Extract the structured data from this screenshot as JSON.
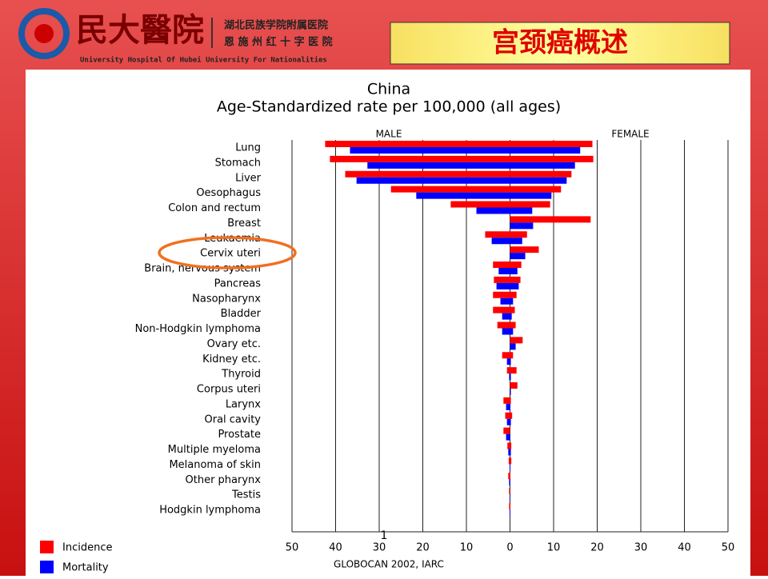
{
  "header": {
    "logo_text": "民大醫院",
    "hospital_lines": [
      "湖北民族学院附属医院",
      "恩 施 州 红 十 字 医 院"
    ],
    "hospital_en": "University Hospital Of Hubei University For Nationalities",
    "slide_title": "宫颈癌概述",
    "page_number": "1"
  },
  "chart_data": {
    "type": "butterfly-bar",
    "title": "China",
    "subtitle": "Age-Standardized rate per 100,000 (all ages)",
    "side_labels": [
      "MALE",
      "FEMALE"
    ],
    "source": "GLOBOCAN 2002, IARC",
    "categories": [
      "Lung",
      "Stomach",
      "Liver",
      "Oesophagus",
      "Colon and rectum",
      "Breast",
      "Leukaemia",
      "Cervix uteri",
      "Brain, nervous system",
      "Pancreas",
      "Nasopharynx",
      "Bladder",
      "Non-Hodgkin lymphoma",
      "Ovary etc.",
      "Kidney etc.",
      "Thyroid",
      "Corpus uteri",
      "Larynx",
      "Oral cavity",
      "Prostate",
      "Multiple myeloma",
      "Melanoma of skin",
      "Other pharynx",
      "Testis",
      "Hodgkin lymphoma"
    ],
    "series": [
      {
        "name": "Incidence",
        "color": "#ff0000",
        "male_values": [
          -42.4,
          -41.3,
          -37.8,
          -27.3,
          -13.6,
          null,
          -5.7,
          null,
          -3.9,
          -3.7,
          -3.9,
          -3.9,
          -2.9,
          null,
          -1.8,
          -0.7,
          null,
          -1.5,
          -1.1,
          -1.5,
          -0.6,
          -0.3,
          -0.4,
          -0.2,
          -0.2
        ],
        "female_values": [
          18.9,
          19.1,
          14.1,
          11.7,
          9.2,
          18.5,
          3.9,
          6.6,
          2.6,
          2.4,
          1.5,
          1.1,
          1.3,
          2.9,
          0.7,
          1.5,
          1.7,
          0.2,
          0.5,
          null,
          0.3,
          0.3,
          0.1,
          null,
          0.1
        ]
      },
      {
        "name": "Mortality",
        "color": "#0000ff",
        "male_values": [
          -36.7,
          -32.7,
          -35.2,
          -21.5,
          -7.7,
          null,
          -4.2,
          null,
          -2.6,
          -3.1,
          -2.2,
          -1.8,
          -1.8,
          null,
          -0.7,
          -0.2,
          null,
          -0.9,
          -0.7,
          -0.9,
          -0.4,
          -0.1,
          -0.2,
          -0.1,
          -0.1
        ],
        "female_values": [
          16.1,
          14.9,
          13.0,
          9.5,
          5.1,
          5.3,
          2.8,
          3.5,
          1.7,
          2.0,
          0.7,
          0.4,
          0.7,
          1.3,
          0.2,
          0.2,
          0.2,
          0.1,
          0.2,
          null,
          0.2,
          0.1,
          0.05,
          null,
          0.05
        ]
      }
    ],
    "xlim": [
      -50,
      50
    ],
    "xticks": [
      {
        "value": -50,
        "label": "50"
      },
      {
        "value": -40,
        "label": "40"
      },
      {
        "value": -30,
        "label": "30"
      },
      {
        "value": -20,
        "label": "20"
      },
      {
        "value": -10,
        "label": "10"
      },
      0,
      10,
      20,
      30,
      40,
      50
    ],
    "grid": true
  }
}
